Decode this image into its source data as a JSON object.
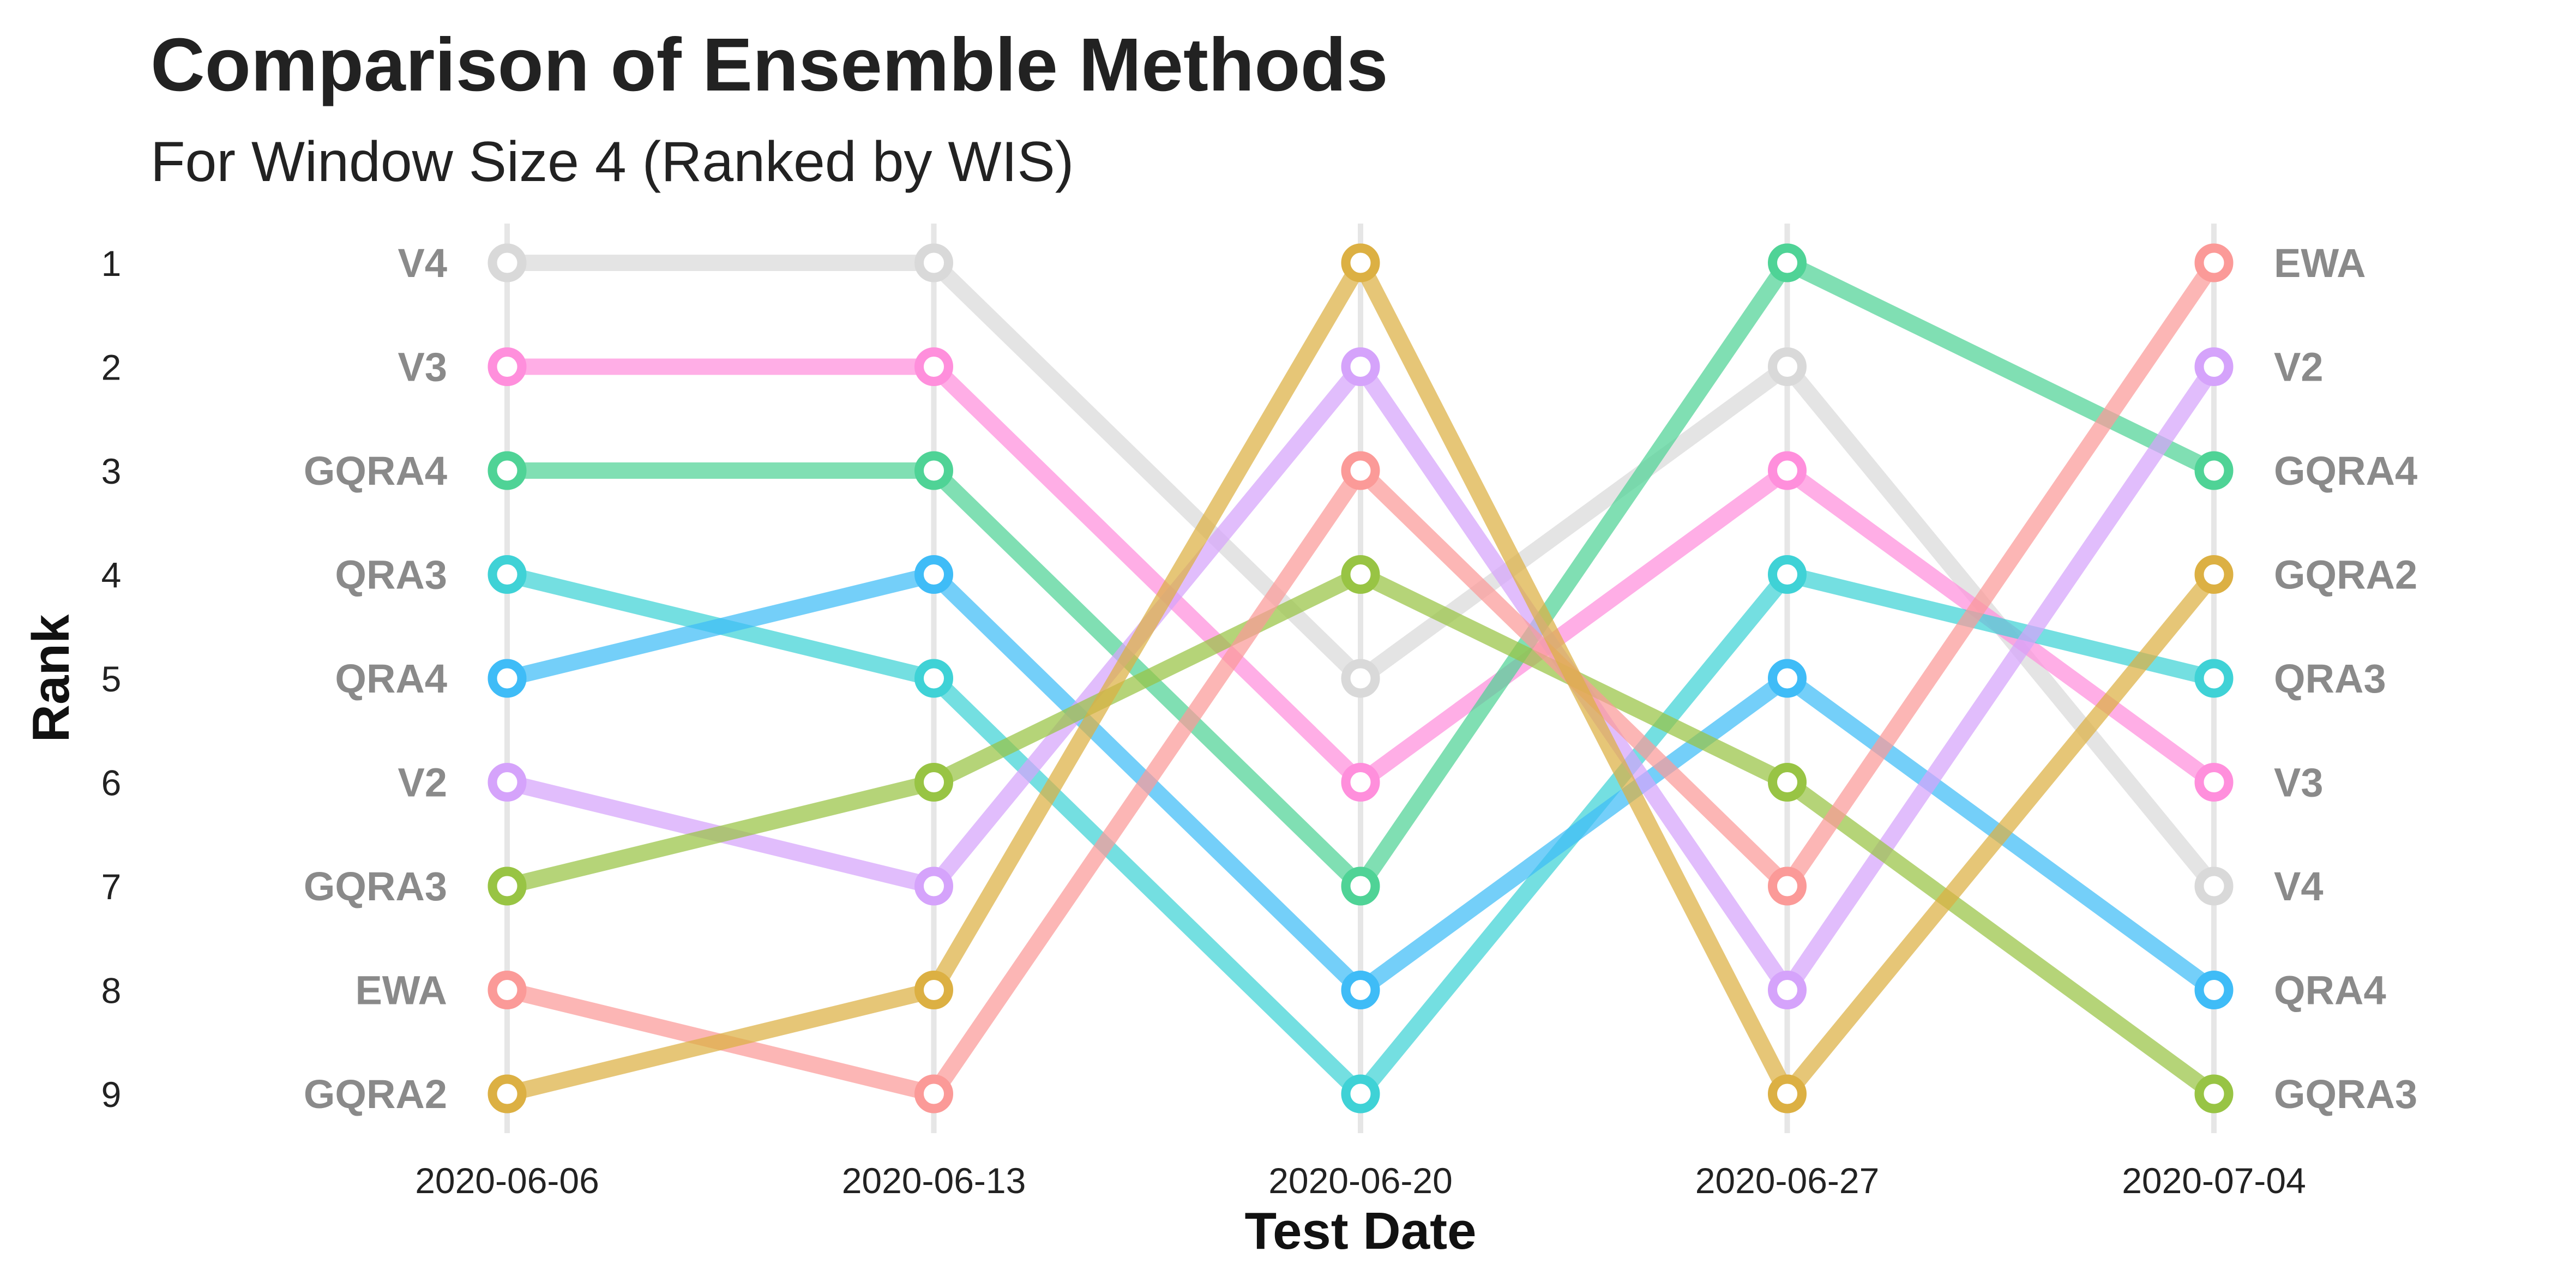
{
  "chart_data": {
    "type": "line",
    "title": "Comparison of Ensemble Methods",
    "subtitle": "For Window Size 4 (Ranked by WIS)",
    "xlabel": "Test Date",
    "ylabel": "Rank",
    "x": [
      "2020-06-06",
      "2020-06-13",
      "2020-06-20",
      "2020-06-27",
      "2020-07-04"
    ],
    "y_ticks": [
      1,
      2,
      3,
      4,
      5,
      6,
      7,
      8,
      9
    ],
    "ylim": [
      1,
      9
    ],
    "y_reversed": true,
    "grid": "vertical",
    "legend": "none (series labeled at line ends)",
    "series": [
      {
        "name": "V4",
        "color": "#d9d9d9",
        "values": [
          1,
          1,
          5,
          2,
          7
        ]
      },
      {
        "name": "V3",
        "color": "#ff8fdc",
        "values": [
          2,
          2,
          6,
          3,
          6
        ]
      },
      {
        "name": "GQRA4",
        "color": "#4fd396",
        "values": [
          3,
          3,
          7,
          1,
          3
        ]
      },
      {
        "name": "QRA3",
        "color": "#3fd2d6",
        "values": [
          4,
          5,
          9,
          4,
          5
        ]
      },
      {
        "name": "QRA4",
        "color": "#3fbcf7",
        "values": [
          5,
          4,
          8,
          5,
          8
        ]
      },
      {
        "name": "V2",
        "color": "#d5a3fb",
        "values": [
          6,
          7,
          2,
          8,
          2
        ]
      },
      {
        "name": "GQRA3",
        "color": "#98c444",
        "values": [
          7,
          6,
          4,
          6,
          9
        ]
      },
      {
        "name": "EWA",
        "color": "#fb9a98",
        "values": [
          8,
          9,
          3,
          7,
          1
        ]
      },
      {
        "name": "GQRA2",
        "color": "#dcb043",
        "values": [
          9,
          8,
          1,
          9,
          4
        ]
      }
    ]
  }
}
